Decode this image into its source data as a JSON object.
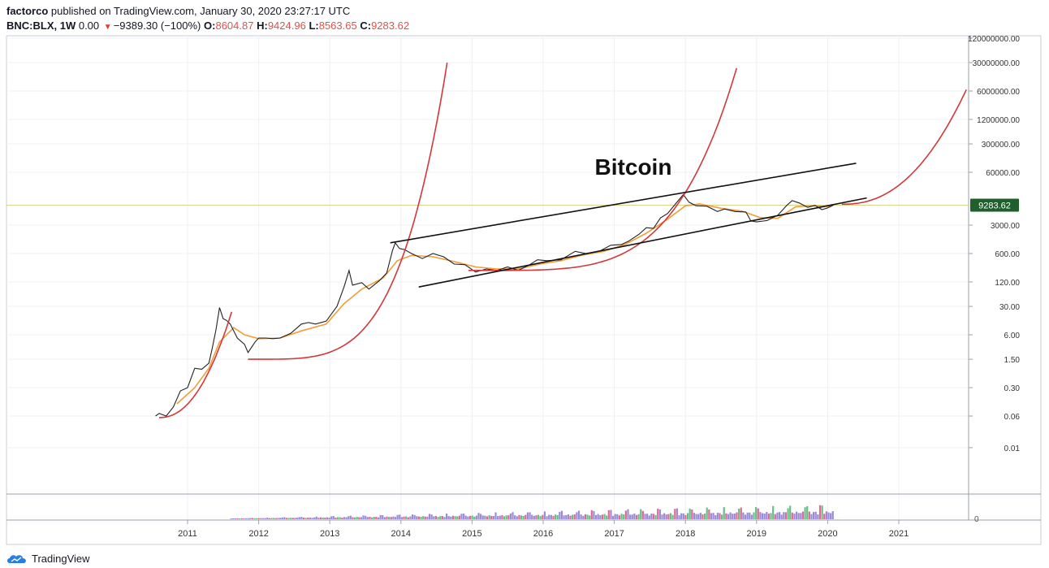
{
  "header": {
    "publisher": "factorco",
    "published_text": "published on TradingView.com, January 30, 2020 23:27:17 UTC",
    "symbol": "BNC:BLX, 1W",
    "change_abs": "0.00",
    "change_text": "−9389.30 (−100%)",
    "o_label": "O:",
    "o_value": "8604.87",
    "h_label": "H:",
    "h_value": "9424.96",
    "l_label": "L:",
    "l_value": "8563.65",
    "c_label": "C:",
    "c_value": "9283.62"
  },
  "footer": {
    "brand": "TradingView"
  },
  "colors": {
    "price": "#222222",
    "ma": "#f29d38",
    "curve": "#d2383a",
    "channel": "#111111",
    "badge": "#1e5f2b",
    "vol_up": "#57b87a",
    "vol_down": "#e0568a",
    "vol_fill": "#8f7fd3"
  },
  "chart_data": {
    "type": "line",
    "title": "Bitcoin",
    "scale": "log",
    "x_ticks": [
      "2011",
      "2012",
      "2013",
      "2014",
      "2015",
      "2016",
      "2017",
      "2018",
      "2019",
      "2020",
      "2021"
    ],
    "y_ticks": [
      "120000000.00",
      "30000000.00",
      "6000000.00",
      "1200000.00",
      "300000.00",
      "60000.00",
      "3000.00",
      "600.00",
      "120.00",
      "30.00",
      "6.00",
      "1.50",
      "0.30",
      "0.06",
      "0.01"
    ],
    "last_price_label": "9283.62",
    "volume_tick": "0",
    "series": [
      {
        "values": [
          [
            2010.55,
            0.06
          ],
          [
            2010.6,
            0.07
          ],
          [
            2010.7,
            0.06
          ],
          [
            2010.8,
            0.1
          ],
          [
            2010.9,
            0.25
          ],
          [
            2011.0,
            0.3
          ],
          [
            2011.1,
            0.9
          ],
          [
            2011.2,
            0.85
          ],
          [
            2011.3,
            1.2
          ],
          [
            2011.35,
            3.0
          ],
          [
            2011.4,
            8.0
          ],
          [
            2011.45,
            28.0
          ],
          [
            2011.5,
            15.0
          ],
          [
            2011.55,
            13.5
          ],
          [
            2011.6,
            11.0
          ],
          [
            2011.7,
            5.0
          ],
          [
            2011.8,
            3.5
          ],
          [
            2011.85,
            2.2
          ],
          [
            2011.95,
            4.0
          ],
          [
            2012.0,
            5.0
          ],
          [
            2012.1,
            5.0
          ],
          [
            2012.2,
            4.8
          ],
          [
            2012.3,
            5.0
          ],
          [
            2012.45,
            6.5
          ],
          [
            2012.6,
            11.0
          ],
          [
            2012.7,
            12.0
          ],
          [
            2012.8,
            11.0
          ],
          [
            2012.95,
            13.0
          ],
          [
            2013.1,
            30.0
          ],
          [
            2013.2,
            90.0
          ],
          [
            2013.27,
            230.0
          ],
          [
            2013.32,
            100.0
          ],
          [
            2013.45,
            115.0
          ],
          [
            2013.55,
            80.0
          ],
          [
            2013.7,
            130.0
          ],
          [
            2013.8,
            200.0
          ],
          [
            2013.88,
            700.0
          ],
          [
            2013.92,
            1100.0
          ],
          [
            2013.98,
            800.0
          ],
          [
            2014.05,
            750.0
          ],
          [
            2014.15,
            600.0
          ],
          [
            2014.3,
            450.0
          ],
          [
            2014.45,
            600.0
          ],
          [
            2014.6,
            500.0
          ],
          [
            2014.75,
            330.0
          ],
          [
            2014.9,
            320.0
          ],
          [
            2015.05,
            210.0
          ],
          [
            2015.2,
            250.0
          ],
          [
            2015.35,
            230.0
          ],
          [
            2015.5,
            280.0
          ],
          [
            2015.65,
            230.0
          ],
          [
            2015.8,
            310.0
          ],
          [
            2015.92,
            420.0
          ],
          [
            2016.05,
            400.0
          ],
          [
            2016.25,
            420.0
          ],
          [
            2016.45,
            680.0
          ],
          [
            2016.6,
            600.0
          ],
          [
            2016.8,
            700.0
          ],
          [
            2016.95,
            960.0
          ],
          [
            2017.1,
            1000.0
          ],
          [
            2017.2,
            1200.0
          ],
          [
            2017.35,
            1800.0
          ],
          [
            2017.45,
            2600.0
          ],
          [
            2017.55,
            2500.0
          ],
          [
            2017.65,
            4500.0
          ],
          [
            2017.75,
            5800.0
          ],
          [
            2017.85,
            9500.0
          ],
          [
            2017.97,
            17000.0
          ],
          [
            2018.05,
            11000.0
          ],
          [
            2018.15,
            9000.0
          ],
          [
            2018.3,
            8800.0
          ],
          [
            2018.45,
            6500.0
          ],
          [
            2018.55,
            7500.0
          ],
          [
            2018.7,
            6500.0
          ],
          [
            2018.85,
            6300.0
          ],
          [
            2018.92,
            3800.0
          ],
          [
            2019.0,
            3600.0
          ],
          [
            2019.15,
            3900.0
          ],
          [
            2019.3,
            5300.0
          ],
          [
            2019.42,
            9000.0
          ],
          [
            2019.5,
            12000.0
          ],
          [
            2019.6,
            10500.0
          ],
          [
            2019.72,
            8200.0
          ],
          [
            2019.82,
            9200.0
          ],
          [
            2019.92,
            7200.0
          ],
          [
            2020.0,
            8000.0
          ],
          [
            2020.08,
            9283.62
          ]
        ]
      },
      {
        "values": [
          [
            2010.85,
            0.12
          ],
          [
            2011.1,
            0.3
          ],
          [
            2011.3,
            0.9
          ],
          [
            2011.45,
            4.0
          ],
          [
            2011.65,
            9.0
          ],
          [
            2011.8,
            6.0
          ],
          [
            2012.0,
            4.8
          ],
          [
            2012.3,
            5.0
          ],
          [
            2012.6,
            7.5
          ],
          [
            2012.95,
            11.0
          ],
          [
            2013.2,
            35.0
          ],
          [
            2013.45,
            80.0
          ],
          [
            2013.75,
            150.0
          ],
          [
            2013.95,
            400.0
          ],
          [
            2014.15,
            540.0
          ],
          [
            2014.45,
            500.0
          ],
          [
            2014.75,
            380.0
          ],
          [
            2015.05,
            280.0
          ],
          [
            2015.35,
            250.0
          ],
          [
            2015.65,
            250.0
          ],
          [
            2015.95,
            330.0
          ],
          [
            2016.25,
            400.0
          ],
          [
            2016.55,
            550.0
          ],
          [
            2016.85,
            680.0
          ],
          [
            2017.15,
            1000.0
          ],
          [
            2017.45,
            1900.0
          ],
          [
            2017.75,
            4200.0
          ],
          [
            2018.0,
            9000.0
          ],
          [
            2018.2,
            10000.0
          ],
          [
            2018.5,
            7800.0
          ],
          [
            2018.8,
            6600.0
          ],
          [
            2019.05,
            4600.0
          ],
          [
            2019.3,
            4400.0
          ],
          [
            2019.55,
            8500.0
          ],
          [
            2019.8,
            9000.0
          ],
          [
            2020.05,
            8600.0
          ]
        ]
      }
    ]
  }
}
